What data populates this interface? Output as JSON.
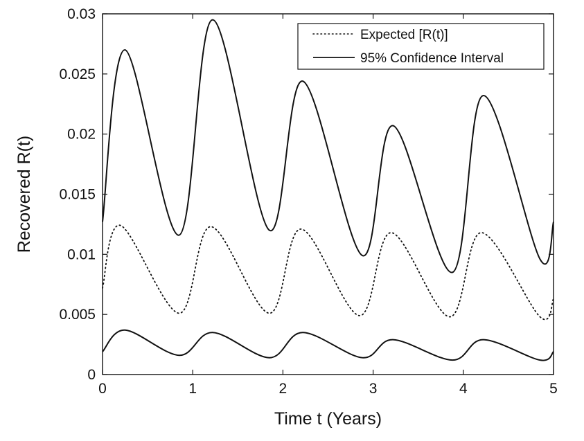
{
  "chart_data": {
    "type": "line",
    "xlabel": "Time t (Years)",
    "ylabel": "Recovered R(t)",
    "xlim": [
      0,
      5
    ],
    "ylim": [
      0,
      0.03
    ],
    "xticks": [
      "0",
      "1",
      "2",
      "3",
      "4",
      "5"
    ],
    "yticks": [
      "0",
      "0.005",
      "0.01",
      "0.015",
      "0.02",
      "0.025",
      "0.03"
    ],
    "grid": false,
    "legend_position": "top-right",
    "legend": [
      {
        "label": "Expected [R(t)]",
        "style": "dotted"
      },
      {
        "label": "95% Confidence Interval",
        "style": "solid"
      }
    ],
    "series": [
      {
        "name": "Expected [R(t)]",
        "style": "dotted",
        "x": [
          0,
          0.2,
          0.85,
          1.2,
          1.85,
          2.2,
          2.85,
          3.2,
          3.85,
          4.2,
          4.85,
          5.0
        ],
        "y": [
          0.0072,
          0.0124,
          0.0051,
          0.0123,
          0.0051,
          0.0121,
          0.0049,
          0.0118,
          0.0048,
          0.0118,
          0.0048,
          0.0063
        ]
      },
      {
        "name": "95% Confidence Interval",
        "style": "solid",
        "x": [
          0,
          0.25,
          0.85,
          1.22,
          1.85,
          2.22,
          2.88,
          3.22,
          3.88,
          4.22,
          4.85,
          5.0
        ],
        "y": [
          0.0127,
          0.027,
          0.0116,
          0.0295,
          0.012,
          0.0244,
          0.0099,
          0.0207,
          0.0085,
          0.0232,
          0.0096,
          0.0127
        ]
      },
      {
        "name": "95% Confidence Interval",
        "style": "solid",
        "x": [
          0,
          0.25,
          0.85,
          1.22,
          1.85,
          2.22,
          2.88,
          3.22,
          3.88,
          4.22,
          4.85,
          5.0
        ],
        "y": [
          0.0019,
          0.0037,
          0.0016,
          0.0035,
          0.0014,
          0.0035,
          0.0014,
          0.0029,
          0.0012,
          0.0029,
          0.0012,
          0.0019
        ]
      }
    ]
  }
}
